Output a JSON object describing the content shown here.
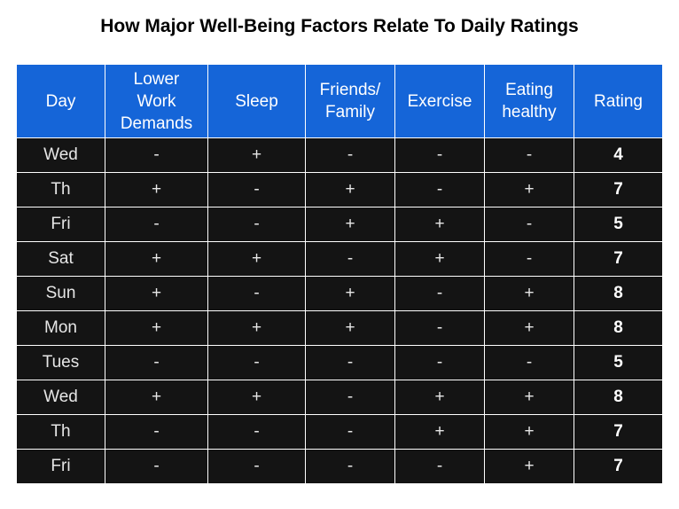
{
  "chart_data": {
    "type": "table",
    "title": "How Major Well-Being Factors Relate To Daily Ratings",
    "columns": [
      [
        "Day"
      ],
      [
        "Lower",
        "Work",
        "Demands"
      ],
      [
        "Sleep"
      ],
      [
        "Friends/",
        "Family"
      ],
      [
        "Exercise"
      ],
      [
        "Eating",
        "healthy"
      ],
      [
        "Rating"
      ]
    ],
    "rows": [
      [
        "Wed",
        "-",
        "+",
        "-",
        "-",
        "-",
        "4"
      ],
      [
        "Th",
        "+",
        "-",
        "+",
        "-",
        "+",
        "7"
      ],
      [
        "Fri",
        "-",
        "-",
        "+",
        "+",
        "-",
        "5"
      ],
      [
        "Sat",
        "+",
        "+",
        "-",
        "+",
        "-",
        "7"
      ],
      [
        "Sun",
        "+",
        "-",
        "+",
        "-",
        "+",
        "8"
      ],
      [
        "Mon",
        "+",
        "+",
        "+",
        "-",
        "+",
        "8"
      ],
      [
        "Tues",
        "-",
        "-",
        "-",
        "-",
        "-",
        "5"
      ],
      [
        "Wed",
        "+",
        "+",
        "-",
        "+",
        "+",
        "8"
      ],
      [
        "Th",
        "-",
        "-",
        "-",
        "+",
        "+",
        "7"
      ],
      [
        "Fri",
        "-",
        "-",
        "-",
        "-",
        "+",
        "7"
      ]
    ],
    "colors": {
      "header_background": "#1565d8",
      "cell_background": "#141414",
      "header_text": "#ffffff",
      "cell_text": "#e6e6e6"
    }
  }
}
